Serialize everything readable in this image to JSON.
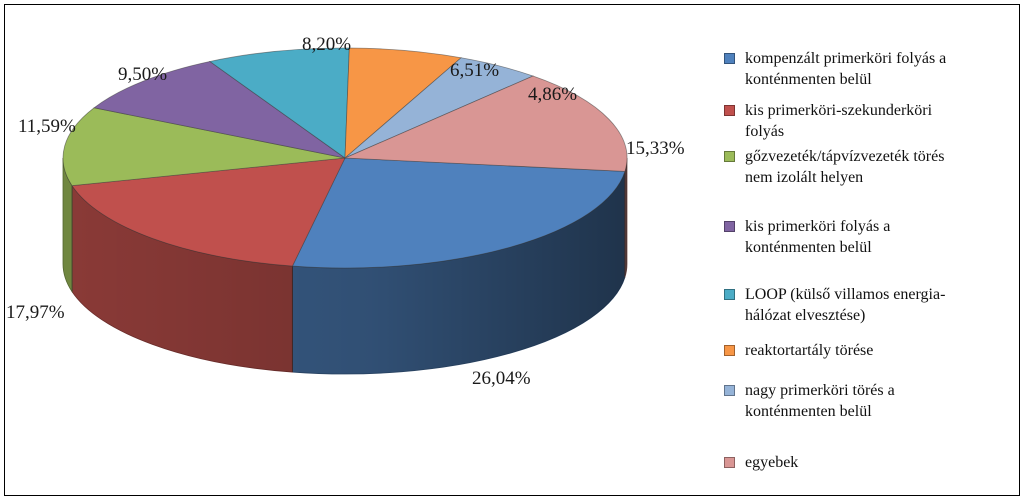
{
  "chart_data": {
    "type": "pie",
    "title": "",
    "three_d": true,
    "legend_position": "right",
    "labels_format": "percent",
    "categories": [
      "kompenzált primerköri folyás a konténmenten belül",
      "kis primerköri-szekunderköri folyás",
      "gőzvezeték/tápvízvezeték törés nem izolált helyen",
      "kis primerköri folyás a konténmenten belül",
      "LOOP (külső villamos energia-hálózat elvesztése)",
      "reaktortartály törése",
      "nagy primerköri törés a konténmenten belül",
      "egyebek"
    ],
    "legend_lines": [
      [
        "kompenzált primerköri folyás a",
        "konténmenten belül"
      ],
      [
        "kis primerköri-szekunderköri",
        "folyás"
      ],
      [
        "gőzvezeték/tápvízvezeték törés",
        "nem izolált helyen"
      ],
      [
        "kis primerköri folyás a",
        "konténmenten belül"
      ],
      [
        "LOOP (külső villamos energia-",
        "hálózat elvesztése)"
      ],
      [
        "reaktortartály törése"
      ],
      [
        "nagy primerköri törés a",
        "konténmenten belül"
      ],
      [
        "egyebek"
      ]
    ],
    "values": [
      26.04,
      17.97,
      11.59,
      9.5,
      8.2,
      6.51,
      4.86,
      15.33
    ],
    "value_labels": [
      "26,04%",
      "17,97%",
      "11,59%",
      "9,50%",
      "8,20%",
      "6,51%",
      "4,86%",
      "15,33%"
    ],
    "colors": [
      "#4F81BD",
      "#C0504D",
      "#9BBB59",
      "#8064A2",
      "#4BACC6",
      "#F79646",
      "#95B3D7",
      "#D99694"
    ]
  }
}
